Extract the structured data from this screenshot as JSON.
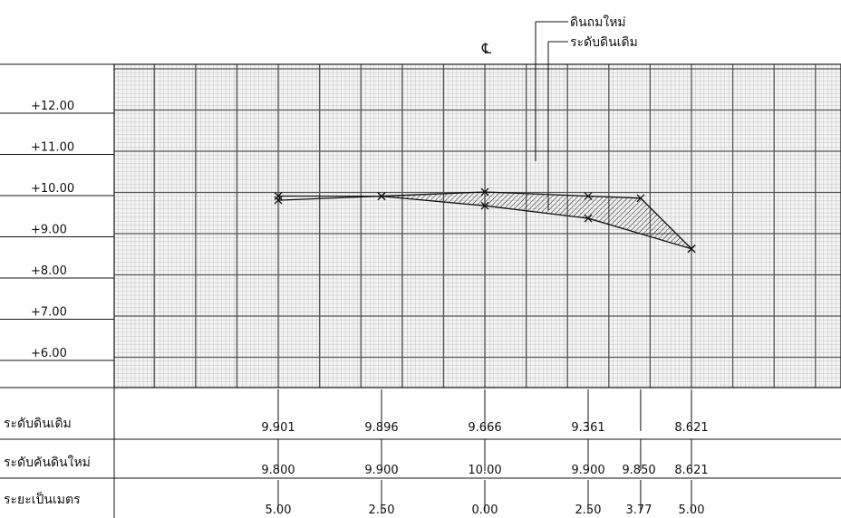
{
  "annotations": {
    "centerline_symbol": "℄",
    "fill_label": "ดินถมใหม่",
    "ground_label": "ระดับดินเดิม"
  },
  "elevation_labels": [
    "+12.00",
    "+11.00",
    "+10.00",
    "+9.00",
    "+8.00",
    "+7.00",
    "+6.00"
  ],
  "table": {
    "row_labels": [
      "ระดับดินเดิม",
      "ระดับคันดินใหม่",
      "ระยะเป็นเมตร"
    ],
    "original_ground": [
      "9.901",
      "9.896",
      "9.666",
      "9.361",
      "8.621"
    ],
    "new_embankment": [
      "9.800",
      "9.900",
      "10.00",
      "9.900",
      "9.850",
      "8.621"
    ],
    "distances_m": [
      "5.00",
      "2.50",
      "0.00",
      "2.50",
      "3.77",
      "5.00"
    ]
  },
  "chart_data": {
    "type": "line",
    "xlabel": "",
    "ylabel": "",
    "ylim": [
      5.0,
      13.0
    ],
    "x_signed": [
      -5.0,
      -2.5,
      0.0,
      2.5,
      3.77,
      5.0
    ],
    "series": [
      {
        "x": [
          -5.0,
          -2.5,
          0.0,
          2.5,
          5.0
        ],
        "y": [
          9.901,
          9.896,
          9.666,
          9.361,
          8.621
        ]
      },
      {
        "x": [
          -5.0,
          -2.5,
          0.0,
          2.5,
          3.77,
          5.0
        ],
        "y": [
          9.8,
          9.9,
          10.0,
          9.9,
          9.85,
          8.621
        ]
      }
    ],
    "fill_between": "new_embankment_above_ground",
    "grid": true
  }
}
